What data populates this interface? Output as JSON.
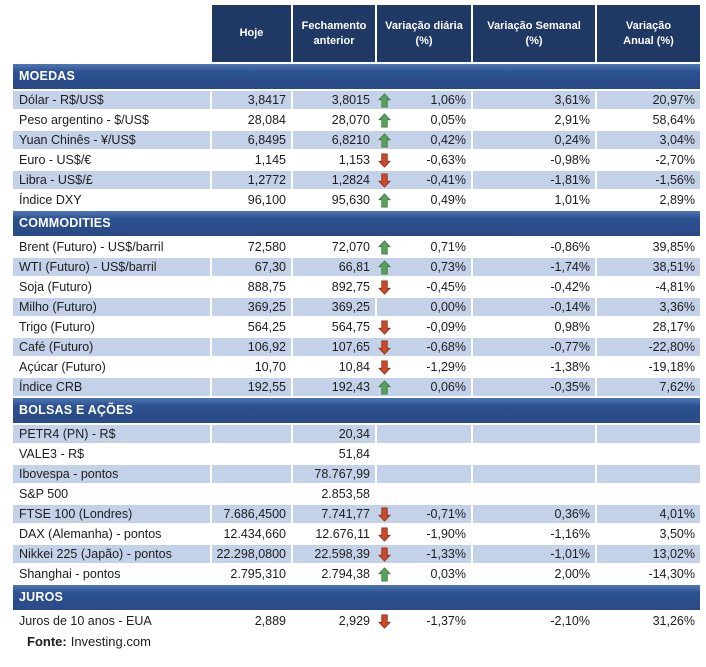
{
  "chart_data": {
    "type": "table",
    "columns": [
      "Hoje",
      "Fechamento anterior",
      "Variação diária (%)",
      "Variação Semanal (%)",
      "Variação Anual (%)"
    ],
    "sections": [
      {
        "title": "MOEDAS",
        "rows": [
          {
            "label": "Dólar - R$/US$",
            "hoje": "3,8417",
            "fechamento": "3,8015",
            "arrow": "up",
            "diaria": "1,06%",
            "semanal": "3,61%",
            "anual": "20,97%"
          },
          {
            "label": "Peso argentino - $/US$",
            "hoje": "28,084",
            "fechamento": "28,070",
            "arrow": "up",
            "diaria": "0,05%",
            "semanal": "2,91%",
            "anual": "58,64%"
          },
          {
            "label": "Yuan Chinês - ¥/US$",
            "hoje": "6,8495",
            "fechamento": "6,8210",
            "arrow": "up",
            "diaria": "0,42%",
            "semanal": "0,24%",
            "anual": "3,04%"
          },
          {
            "label": "Euro - US$/€",
            "hoje": "1,145",
            "fechamento": "1,153",
            "arrow": "down",
            "diaria": "-0,63%",
            "semanal": "-0,98%",
            "anual": "-2,70%"
          },
          {
            "label": "Libra - US$/£",
            "hoje": "1,2772",
            "fechamento": "1,2824",
            "arrow": "down",
            "diaria": "-0,41%",
            "semanal": "-1,81%",
            "anual": "-1,56%"
          },
          {
            "label": "Índice DXY",
            "hoje": "96,100",
            "fechamento": "95,630",
            "arrow": "up",
            "diaria": "0,49%",
            "semanal": "1,01%",
            "anual": "2,89%"
          }
        ]
      },
      {
        "title": "COMMODITIES",
        "rows": [
          {
            "label": "Brent (Futuro) - US$/barril",
            "hoje": "72,580",
            "fechamento": "72,070",
            "arrow": "up",
            "diaria": "0,71%",
            "semanal": "-0,86%",
            "anual": "39,85%"
          },
          {
            "label": "WTI (Futuro) - US$/barril",
            "hoje": "67,30",
            "fechamento": "66,81",
            "arrow": "up",
            "diaria": "0,73%",
            "semanal": "-1,74%",
            "anual": "38,51%"
          },
          {
            "label": "Soja (Futuro)",
            "hoje": "888,75",
            "fechamento": "892,75",
            "arrow": "down",
            "diaria": "-0,45%",
            "semanal": "-0,42%",
            "anual": "-4,81%"
          },
          {
            "label": "Milho (Futuro)",
            "hoje": "369,25",
            "fechamento": "369,25",
            "arrow": "",
            "diaria": "0,00%",
            "semanal": "-0,14%",
            "anual": "3,36%"
          },
          {
            "label": "Trigo (Futuro)",
            "hoje": "564,25",
            "fechamento": "564,75",
            "arrow": "down",
            "diaria": "-0,09%",
            "semanal": "0,98%",
            "anual": "28,17%"
          },
          {
            "label": "Café (Futuro)",
            "hoje": "106,92",
            "fechamento": "107,65",
            "arrow": "down",
            "diaria": "-0,68%",
            "semanal": "-0,77%",
            "anual": "-22,80%"
          },
          {
            "label": "Açúcar (Futuro)",
            "hoje": "10,70",
            "fechamento": "10,84",
            "arrow": "down",
            "diaria": "-1,29%",
            "semanal": "-1,38%",
            "anual": "-19,18%"
          },
          {
            "label": "Índice CRB",
            "hoje": "192,55",
            "fechamento": "192,43",
            "arrow": "up",
            "diaria": "0,06%",
            "semanal": "-0,35%",
            "anual": "7,62%"
          }
        ]
      },
      {
        "title": "BOLSAS E AÇÕES",
        "rows": [
          {
            "label": "PETR4 (PN) - R$",
            "hoje": "",
            "fechamento": "20,34",
            "arrow": "",
            "diaria": "",
            "semanal": "",
            "anual": ""
          },
          {
            "label": "VALE3 - R$",
            "hoje": "",
            "fechamento": "51,84",
            "arrow": "",
            "diaria": "",
            "semanal": "",
            "anual": ""
          },
          {
            "label": "Ibovespa - pontos",
            "hoje": "",
            "fechamento": "78.767,99",
            "arrow": "",
            "diaria": "",
            "semanal": "",
            "anual": ""
          },
          {
            "label": "S&P 500",
            "hoje": "",
            "fechamento": "2.853,58",
            "arrow": "",
            "diaria": "",
            "semanal": "",
            "anual": ""
          },
          {
            "label": "FTSE 100 (Londres)",
            "hoje": "7.686,4500",
            "fechamento": "7.741,77",
            "arrow": "down",
            "diaria": "-0,71%",
            "semanal": "0,36%",
            "anual": "4,01%"
          },
          {
            "label": "DAX (Alemanha) - pontos",
            "hoje": "12.434,660",
            "fechamento": "12.676,11",
            "arrow": "down",
            "diaria": "-1,90%",
            "semanal": "-1,16%",
            "anual": "3,50%"
          },
          {
            "label": "Nikkei 225 (Japão) - pontos",
            "hoje": "22.298,0800",
            "fechamento": "22.598,39",
            "arrow": "down",
            "diaria": "-1,33%",
            "semanal": "-1,01%",
            "anual": "13,02%"
          },
          {
            "label": "Shanghai - pontos",
            "hoje": "2.795,310",
            "fechamento": "2.794,38",
            "arrow": "up",
            "diaria": "0,03%",
            "semanal": "2,00%",
            "anual": "-14,30%"
          }
        ]
      },
      {
        "title": "JUROS",
        "rows": [
          {
            "label": "Juros de 10 anos - EUA",
            "hoje": "2,889",
            "fechamento": "2,929",
            "arrow": "down",
            "diaria": "-1,37%",
            "semanal": "-2,10%",
            "anual": "31,26%"
          }
        ]
      }
    ]
  },
  "footer": {
    "prefix": "Fonte:",
    "source": "Investing.com"
  },
  "icons": {
    "up": "trend-up-icon",
    "down": "trend-down-icon"
  },
  "colors": {
    "header_bg": "#1F3864",
    "section_bg": "#2C5090",
    "band_row": "#C4D2E9",
    "arrow_up": "#58A35C",
    "arrow_down": "#CB4A2B"
  }
}
